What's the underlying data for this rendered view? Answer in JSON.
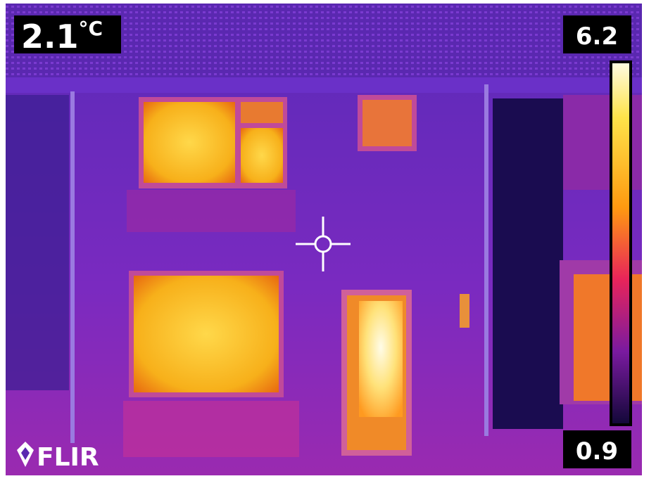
{
  "spot_reading": {
    "value": "2.1",
    "unit": "°C"
  },
  "scale": {
    "max": "6.2",
    "min": "0.9"
  },
  "logo": "FLIR"
}
